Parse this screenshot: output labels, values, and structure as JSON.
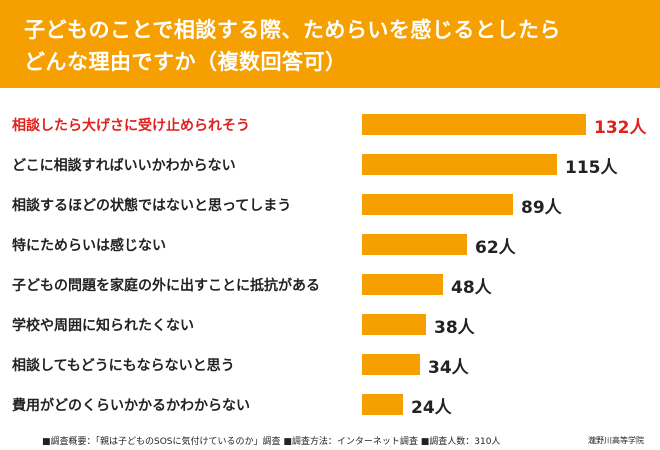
{
  "title": {
    "line1": "子どものことで相談する際、ためらいを感じるとしたら",
    "line2": "どんな理由ですか（複数回答可）"
  },
  "colors": {
    "header": "#f5a000",
    "bar": "#f5a000",
    "highlight_text": "#e0201c",
    "text": "#222222"
  },
  "chart_data": {
    "type": "bar",
    "orientation": "horizontal",
    "unit": "人",
    "categories": [
      "相談したら大げさに受け止められそう",
      "どこに相談すればいいかわからない",
      "相談するほどの状態ではないと思ってしまう",
      "特にためらいは感じない",
      "子どもの問題を家庭の外に出すことに抵抗がある",
      "学校や周囲に知られたくない",
      "相談してもどうにもならないと思う",
      "費用がどのくらいかかるかわからない"
    ],
    "values": [
      132,
      115,
      89,
      62,
      48,
      38,
      34,
      24
    ],
    "value_labels": [
      "132人",
      "115人",
      "89人",
      "62人",
      "48人",
      "38人",
      "34人",
      "24人"
    ],
    "highlight_index": 0,
    "grid": false,
    "legend": "none"
  },
  "footer": {
    "note": "■調査概要：「親は子どものSOSに気付けているのか」調査 ■調査方法：インターネット調査 ■調査人数：310人",
    "credit": "瀧野川高等学院"
  }
}
